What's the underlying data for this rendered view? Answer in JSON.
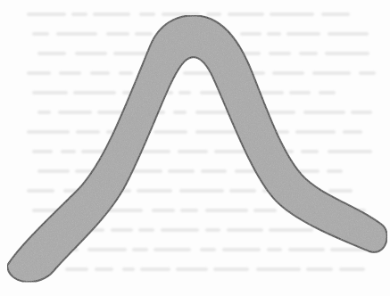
{
  "scene": {
    "shape_name": "boomerang",
    "colors": {
      "paper": "#fdfdfd",
      "bleed_text": "#8a8a8a",
      "shape_fill": "#a9a9a9",
      "shape_outline": "#4a4a4a",
      "shape_speckle": "#7d7d7d"
    }
  }
}
